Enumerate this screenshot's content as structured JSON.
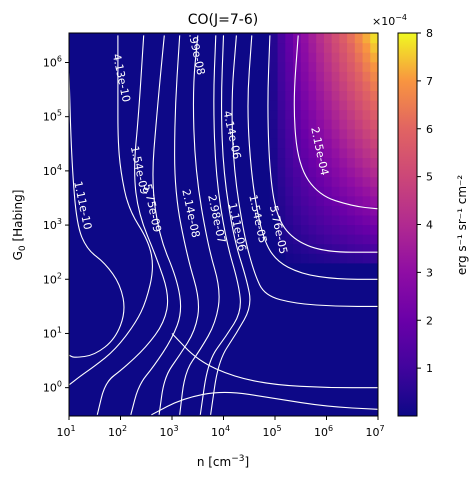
{
  "chart_data": {
    "type": "heatmap",
    "title": "CO(J=7-6)",
    "xlabel": "n [cm",
    "xlabel_sup": "−3",
    "xlabel_close": "]",
    "ylabel": "G",
    "ylabel_sub": "0",
    "ylabel_rest": " [Habing]",
    "x_scale": "log",
    "y_scale": "log",
    "xlim": [
      10,
      10000000
    ],
    "ylim": [
      0.3,
      3500000
    ],
    "x_ticks": [
      {
        "value": 10,
        "base": "10",
        "exp": "1"
      },
      {
        "value": 100,
        "base": "10",
        "exp": "2"
      },
      {
        "value": 1000,
        "base": "10",
        "exp": "3"
      },
      {
        "value": 10000,
        "base": "10",
        "exp": "4"
      },
      {
        "value": 100000,
        "base": "10",
        "exp": "5"
      },
      {
        "value": 1000000,
        "base": "10",
        "exp": "6"
      },
      {
        "value": 10000000,
        "base": "10",
        "exp": "7"
      }
    ],
    "y_ticks": [
      {
        "value": 1,
        "base": "10",
        "exp": "0"
      },
      {
        "value": 10,
        "base": "10",
        "exp": "1"
      },
      {
        "value": 100,
        "base": "10",
        "exp": "2"
      },
      {
        "value": 1000,
        "base": "10",
        "exp": "3"
      },
      {
        "value": 10000,
        "base": "10",
        "exp": "4"
      },
      {
        "value": 100000,
        "base": "10",
        "exp": "5"
      },
      {
        "value": 1000000,
        "base": "10",
        "exp": "6"
      }
    ],
    "colorbar": {
      "colormap": "plasma",
      "range": [
        0,
        8
      ],
      "ticks": [
        "1",
        "2",
        "3",
        "4",
        "5",
        "6",
        "7",
        "8"
      ],
      "multiplier_base": "×10",
      "multiplier_exp": "−4",
      "label": "erg s⁻¹ sr⁻¹ cm⁻²"
    },
    "contours": {
      "color": "#ffffff",
      "levels": [
        {
          "label": "1.11e-10",
          "log_n": 1.2,
          "log_g": 3.35
        },
        {
          "label": "4.13e-10",
          "log_n": 1.95,
          "log_g": 5.7
        },
        {
          "label": "1.54e-09",
          "log_n": 2.3,
          "log_g": 4.0
        },
        {
          "label": "5.75e-09",
          "log_n": 2.55,
          "log_g": 3.3
        },
        {
          "label": "2.14e-08",
          "log_n": 3.3,
          "log_g": 3.2
        },
        {
          "label": "7.99e-08",
          "log_n": 3.4,
          "log_g": 6.2
        },
        {
          "label": "2.98e-07",
          "log_n": 3.8,
          "log_g": 3.1
        },
        {
          "label": "1.11e-06",
          "log_n": 4.2,
          "log_g": 2.95
        },
        {
          "label": "4.14e-06",
          "log_n": 4.1,
          "log_g": 4.65
        },
        {
          "label": "1.54e-05",
          "log_n": 4.6,
          "log_g": 3.1
        },
        {
          "label": "5.76e-05",
          "log_n": 5.0,
          "log_g": 2.9
        },
        {
          "label": "2.15e-04",
          "log_n": 5.8,
          "log_g": 4.35
        }
      ]
    }
  }
}
